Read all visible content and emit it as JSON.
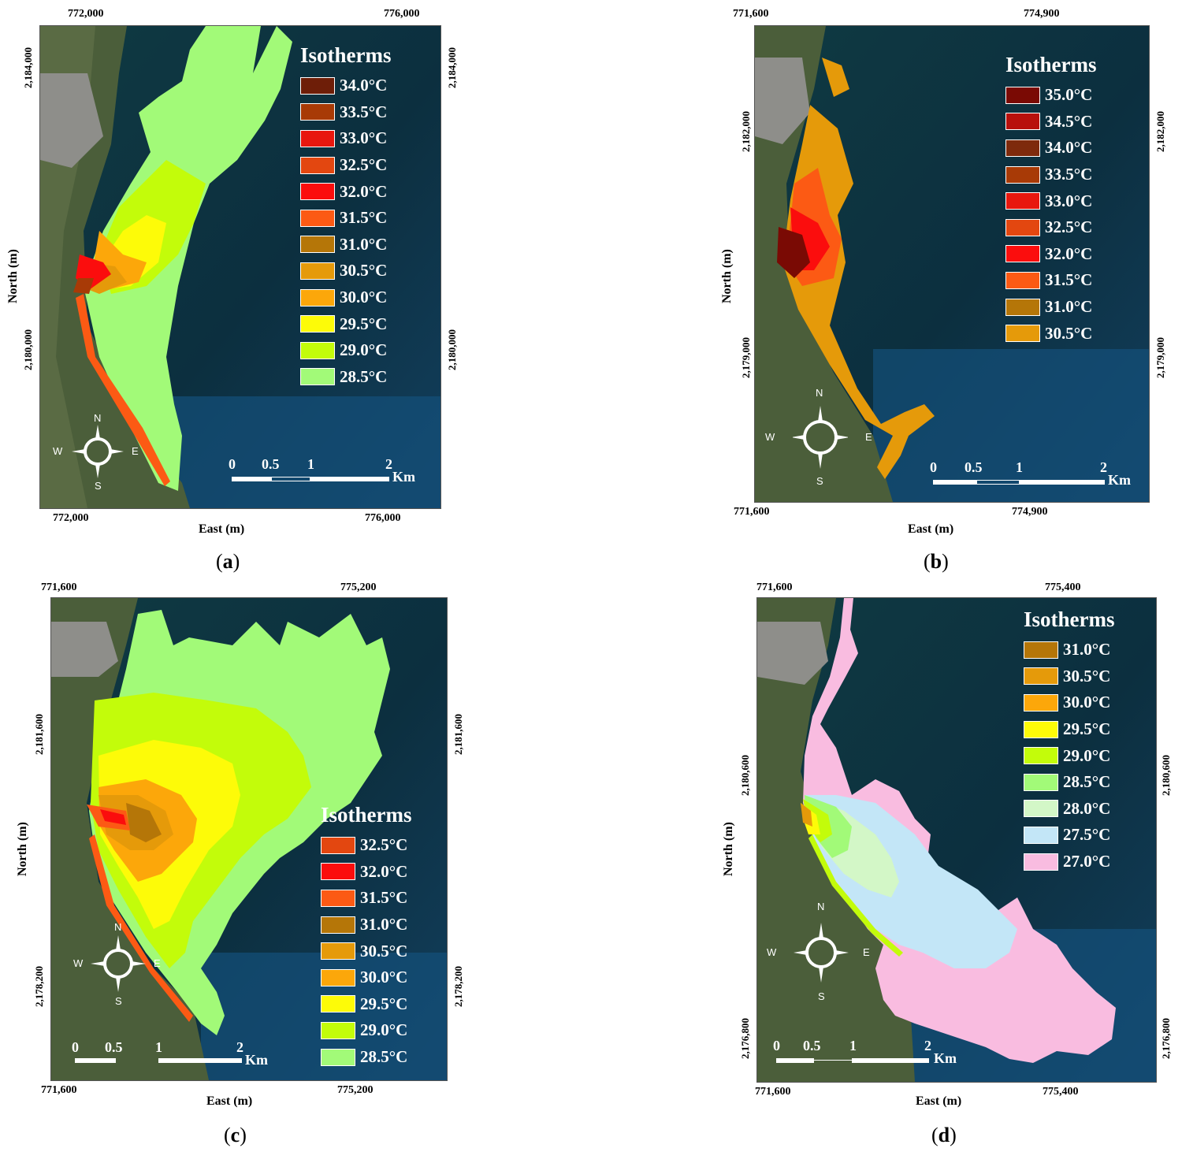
{
  "panels": [
    {
      "id": "a",
      "caption_letter": "a",
      "top_ticks": [
        "772,000",
        "776,000"
      ],
      "bottom_ticks": [
        "772,000",
        "776,000"
      ],
      "left_ticks": [
        "2,184,000",
        "2,180,000"
      ],
      "right_ticks": [
        "2,184,000",
        "2,180,000"
      ],
      "xlabel": "East (m)",
      "ylabel": "North (m)",
      "legend_title": "Isotherms",
      "isotherms": [
        {
          "label": "34.0°C",
          "color": "#6e1e08"
        },
        {
          "label": "33.5°C",
          "color": "#a83a06"
        },
        {
          "label": "33.0°C",
          "color": "#e8170e"
        },
        {
          "label": "32.5°C",
          "color": "#e34710"
        },
        {
          "label": "32.0°C",
          "color": "#fb0d0d"
        },
        {
          "label": "31.5°C",
          "color": "#fc5a14"
        },
        {
          "label": "31.0°C",
          "color": "#b57608"
        },
        {
          "label": "30.5°C",
          "color": "#e59a0a"
        },
        {
          "label": "30.0°C",
          "color": "#fca70a"
        },
        {
          "label": "29.5°C",
          "color": "#fdfb08"
        },
        {
          "label": "29.0°C",
          "color": "#c3fc0a"
        },
        {
          "label": "28.5°C",
          "color": "#a2fa78"
        }
      ],
      "scale": {
        "ticks": [
          "0",
          "0.5",
          "1",
          "2"
        ],
        "unit": "Km"
      },
      "compass": {
        "n": "N",
        "s": "S",
        "e": "E",
        "w": "W"
      }
    },
    {
      "id": "b",
      "caption_letter": "b",
      "top_ticks": [
        "771,600",
        "774,900"
      ],
      "bottom_ticks": [
        "771,600",
        "774,900"
      ],
      "left_ticks": [
        "2,182,000",
        "2,179,000"
      ],
      "right_ticks": [
        "2,182,000",
        "2,179,000"
      ],
      "xlabel": "East (m)",
      "ylabel": "North (m)",
      "legend_title": "Isotherms",
      "isotherms": [
        {
          "label": "35.0°C",
          "color": "#7a0a04"
        },
        {
          "label": "34.5°C",
          "color": "#b8100c"
        },
        {
          "label": "34.0°C",
          "color": "#7e2a0c"
        },
        {
          "label": "33.5°C",
          "color": "#a83a06"
        },
        {
          "label": "33.0°C",
          "color": "#e8170e"
        },
        {
          "label": "32.5°C",
          "color": "#e34710"
        },
        {
          "label": "32.0°C",
          "color": "#fb0d0d"
        },
        {
          "label": "31.5°C",
          "color": "#fc5a14"
        },
        {
          "label": "31.0°C",
          "color": "#b57608"
        },
        {
          "label": "30.5°C",
          "color": "#e59a0a"
        }
      ],
      "scale": {
        "ticks": [
          "0",
          "0.5",
          "1",
          "2"
        ],
        "unit": "Km"
      },
      "compass": {
        "n": "N",
        "s": "S",
        "e": "E",
        "w": "W"
      }
    },
    {
      "id": "c",
      "caption_letter": "c",
      "top_ticks": [
        "771,600",
        "775,200"
      ],
      "bottom_ticks": [
        "771,600",
        "775,200"
      ],
      "left_ticks": [
        "2,181,600",
        "2,178,200"
      ],
      "right_ticks": [
        "2,181,600",
        "2,178,200"
      ],
      "xlabel": "East (m)",
      "ylabel": "North (m)",
      "legend_title": "Isotherms",
      "isotherms": [
        {
          "label": "32.5°C",
          "color": "#e34710"
        },
        {
          "label": "32.0°C",
          "color": "#fb0d0d"
        },
        {
          "label": "31.5°C",
          "color": "#fc5a14"
        },
        {
          "label": "31.0°C",
          "color": "#b57608"
        },
        {
          "label": "30.5°C",
          "color": "#e59a0a"
        },
        {
          "label": "30.0°C",
          "color": "#fca70a"
        },
        {
          "label": "29.5°C",
          "color": "#fdfb08"
        },
        {
          "label": "29.0°C",
          "color": "#c3fc0a"
        },
        {
          "label": "28.5°C",
          "color": "#a2fa78"
        }
      ],
      "scale": {
        "ticks": [
          "0",
          "0.5",
          "1",
          "2"
        ],
        "unit": "Km"
      },
      "compass": {
        "n": "N",
        "s": "S",
        "e": "E",
        "w": "W"
      }
    },
    {
      "id": "d",
      "caption_letter": "d",
      "top_ticks": [
        "771,600",
        "775,400"
      ],
      "bottom_ticks": [
        "771,600",
        "775,400"
      ],
      "left_ticks": [
        "2,180,600",
        "2,176,800"
      ],
      "right_ticks": [
        "2,180,600",
        "2,176,800"
      ],
      "xlabel": "East (m)",
      "ylabel": "North (m)",
      "legend_title": "Isotherms",
      "isotherms": [
        {
          "label": "31.0°C",
          "color": "#b57608"
        },
        {
          "label": "30.5°C",
          "color": "#e59a0a"
        },
        {
          "label": "30.0°C",
          "color": "#fca70a"
        },
        {
          "label": "29.5°C",
          "color": "#fdfb08"
        },
        {
          "label": "29.0°C",
          "color": "#c3fc0a"
        },
        {
          "label": "28.5°C",
          "color": "#a2fa78"
        },
        {
          "label": "28.0°C",
          "color": "#d3f7c7"
        },
        {
          "label": "27.5°C",
          "color": "#c3e6f7"
        },
        {
          "label": "27.0°C",
          "color": "#f9bce0"
        }
      ],
      "scale": {
        "ticks": [
          "0",
          "0.5",
          "1",
          "2"
        ],
        "unit": "Km"
      },
      "compass": {
        "n": "N",
        "s": "S",
        "e": "E",
        "w": "W"
      }
    }
  ]
}
